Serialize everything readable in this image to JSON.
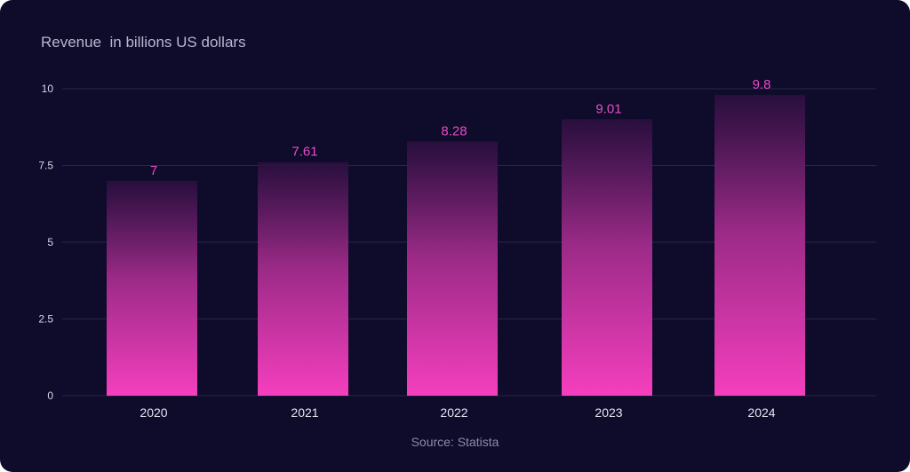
{
  "chart_data": {
    "type": "bar",
    "title": "Revenue  in billions US dollars",
    "categories": [
      "2020",
      "2021",
      "2022",
      "2023",
      "2024"
    ],
    "values": [
      7,
      7.61,
      8.28,
      9.01,
      9.8
    ],
    "data_labels": [
      "7",
      "7.61",
      "8.28",
      "9.01",
      "9.8"
    ],
    "ylim": [
      0,
      10
    ],
    "yticks": [
      0,
      2.5,
      5,
      7.5,
      10
    ],
    "ytick_labels": [
      "0",
      "2.5",
      "5",
      "7.5",
      "10"
    ],
    "grid": true,
    "legend": "none",
    "source": "Source: Statista",
    "colors": {
      "background": "#0e0b2b",
      "bar_bottom": "#f53fbe",
      "bar_top": "#2b0f3f",
      "label": "#e94bc4",
      "grid": "#2a2647"
    }
  }
}
